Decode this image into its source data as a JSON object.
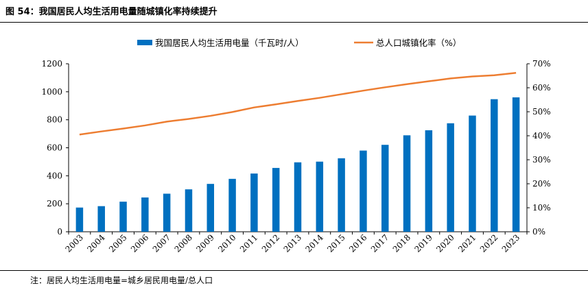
{
  "figure_title": "图 54：我国居民人均生活用电量随城镇化率持续提升",
  "note": "注：居民人均生活用电量=城乡居民用电量/总人口",
  "colors": {
    "bar": "#0070C0",
    "line": "#ED7D31"
  },
  "chart_data": {
    "type": "bar+line",
    "title": "图 54：我国居民人均生活用电量随城镇化率持续提升",
    "categories": [
      "2003",
      "2004",
      "2005",
      "2006",
      "2007",
      "2008",
      "2009",
      "2010",
      "2011",
      "2012",
      "2013",
      "2014",
      "2015",
      "2016",
      "2017",
      "2018",
      "2019",
      "2020",
      "2021",
      "2022",
      "2023"
    ],
    "series": [
      {
        "name": "我国居民人均生活用电量（千瓦时/人）",
        "type": "bar",
        "axis": "left",
        "values": [
          173,
          183,
          215,
          245,
          272,
          303,
          342,
          378,
          416,
          456,
          496,
          501,
          525,
          580,
          621,
          689,
          725,
          775,
          830,
          947,
          960
        ]
      },
      {
        "name": "总人口城镇化率（%）",
        "type": "line",
        "axis": "right",
        "values": [
          40.5,
          41.8,
          43.0,
          44.3,
          45.9,
          47.0,
          48.3,
          49.9,
          51.8,
          53.1,
          54.5,
          55.8,
          57.3,
          58.8,
          60.2,
          61.5,
          62.7,
          63.9,
          64.7,
          65.2,
          66.2
        ]
      }
    ],
    "y_left": {
      "lim": [
        0,
        1200
      ],
      "ticks": [
        "0",
        "200",
        "400",
        "600",
        "800",
        "1000",
        "1200"
      ]
    },
    "y_right": {
      "lim": [
        0,
        70
      ],
      "ticks": [
        "0%",
        "10%",
        "20%",
        "30%",
        "40%",
        "50%",
        "60%",
        "70%"
      ]
    },
    "grid": false,
    "legend_position": "top"
  }
}
